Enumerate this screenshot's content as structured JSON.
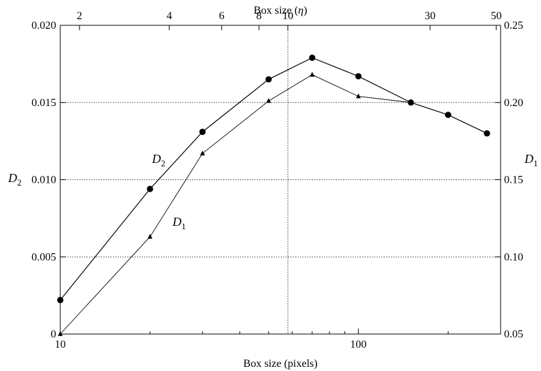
{
  "chart_data": {
    "type": "line",
    "xlabel": "Box size (pixels)",
    "x2label_prefix": "Box size (",
    "x2label_symbol": "η",
    "x2label_suffix": ")",
    "ylabel_left": "D",
    "ylabel_left_sub": "2",
    "ylabel_right": "D",
    "ylabel_right_sub": "1",
    "x_scale": "log",
    "xlim": [
      10,
      300
    ],
    "x_ticks": [
      {
        "value": 10,
        "label": "10"
      },
      {
        "value": 100,
        "label": "100"
      }
    ],
    "x2_ticks": [
      {
        "value": 2,
        "label": "2"
      },
      {
        "value": 4,
        "label": "4"
      },
      {
        "value": 6,
        "label": "6"
      },
      {
        "value": 8,
        "label": "8"
      },
      {
        "value": 10,
        "label": "10"
      },
      {
        "value": 30,
        "label": "30"
      },
      {
        "value": 50,
        "label": "50"
      }
    ],
    "x2_to_x_factor": 5.8,
    "ylim_left": [
      0,
      0.02
    ],
    "y_ticks_left": [
      {
        "value": 0,
        "label": "0"
      },
      {
        "value": 0.005,
        "label": "0.005"
      },
      {
        "value": 0.01,
        "label": "0.010"
      },
      {
        "value": 0.015,
        "label": "0.015"
      },
      {
        "value": 0.02,
        "label": "0.020"
      }
    ],
    "ylim_right": [
      0.05,
      0.25
    ],
    "y_ticks_right": [
      {
        "value": 0.05,
        "label": "0.05"
      },
      {
        "value": 0.1,
        "label": "0.10"
      },
      {
        "value": 0.15,
        "label": "0.15"
      },
      {
        "value": 0.2,
        "label": "0.20"
      },
      {
        "value": 0.25,
        "label": "0.25"
      }
    ],
    "grid_y_left": [
      0.005,
      0.01,
      0.015
    ],
    "grid_x": [
      58
    ],
    "series": [
      {
        "name": "D",
        "name_sub": "2",
        "axis": "left",
        "marker": "circle",
        "x": [
          10,
          20,
          30,
          50,
          70,
          100,
          150,
          200,
          270
        ],
        "y": [
          0.0022,
          0.0094,
          0.0131,
          0.0165,
          0.0179,
          0.0167,
          0.015,
          0.0142,
          0.013
        ]
      },
      {
        "name": "D",
        "name_sub": "1",
        "axis": "right",
        "marker": "triangle",
        "x": [
          10,
          20,
          30,
          50,
          70,
          100,
          150
        ],
        "y": [
          0.05,
          0.113,
          0.167,
          0.201,
          0.218,
          0.204,
          0.2
        ]
      }
    ]
  }
}
